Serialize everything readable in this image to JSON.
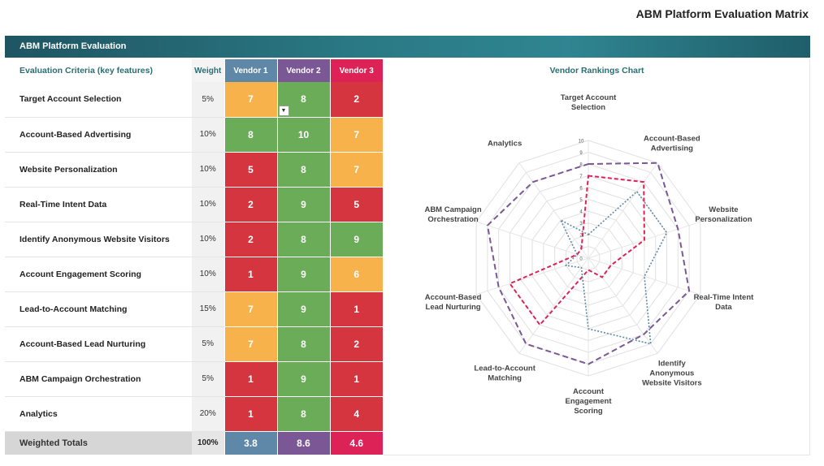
{
  "page_title": "ABM Platform Evaluation Matrix",
  "banner": "ABM Platform Evaluation",
  "table": {
    "criteria_header": "Evaluation Criteria (key features)",
    "weight_header": "Weight",
    "vendors": [
      "Vendor 1",
      "Vendor 2",
      "Vendor 3"
    ],
    "vendor_colors": [
      "#5f87a8",
      "#7b5795",
      "#dc2257"
    ],
    "rows": [
      {
        "criterion": "Target Account Selection",
        "weight": "5%",
        "scores": [
          "7",
          "8",
          "2"
        ],
        "ratings": [
          "o",
          "g",
          "r"
        ]
      },
      {
        "criterion": "Account-Based Advertising",
        "weight": "10%",
        "scores": [
          "8",
          "10",
          "7"
        ],
        "ratings": [
          "g",
          "g",
          "o"
        ]
      },
      {
        "criterion": "Website Personalization",
        "weight": "10%",
        "scores": [
          "5",
          "8",
          "7"
        ],
        "ratings": [
          "r",
          "g",
          "o"
        ]
      },
      {
        "criterion": "Real-Time Intent Data",
        "weight": "10%",
        "scores": [
          "2",
          "9",
          "5"
        ],
        "ratings": [
          "r",
          "g",
          "r"
        ]
      },
      {
        "criterion": "Identify Anonymous Website Visitors",
        "weight": "10%",
        "scores": [
          "2",
          "8",
          "9"
        ],
        "ratings": [
          "r",
          "g",
          "g"
        ]
      },
      {
        "criterion": "Account Engagement Scoring",
        "weight": "10%",
        "scores": [
          "1",
          "9",
          "6"
        ],
        "ratings": [
          "r",
          "g",
          "o"
        ]
      },
      {
        "criterion": "Lead-to-Account Matching",
        "weight": "15%",
        "scores": [
          "7",
          "9",
          "1"
        ],
        "ratings": [
          "o",
          "g",
          "r"
        ]
      },
      {
        "criterion": "Account-Based Lead Nurturing",
        "weight": "5%",
        "scores": [
          "7",
          "8",
          "2"
        ],
        "ratings": [
          "o",
          "g",
          "r"
        ]
      },
      {
        "criterion": "ABM Campaign Orchestration",
        "weight": "5%",
        "scores": [
          "1",
          "9",
          "1"
        ],
        "ratings": [
          "r",
          "g",
          "r"
        ]
      },
      {
        "criterion": "Analytics",
        "weight": "20%",
        "scores": [
          "1",
          "8",
          "4"
        ],
        "ratings": [
          "r",
          "g",
          "r"
        ]
      }
    ],
    "totals": {
      "label": "Weighted Totals",
      "weight": "100%",
      "values": [
        "3.8",
        "8.6",
        "4.6"
      ]
    },
    "dropdown_icon": "dropdown-arrow-icon"
  },
  "chart_data": {
    "type": "radar",
    "title": "Vendor Rankings Chart",
    "axes": [
      [
        "Target Account",
        "Selection"
      ],
      [
        "Account-Based",
        "Advertising"
      ],
      [
        "Website",
        "Personalization"
      ],
      [
        "Real-Time Intent",
        "Data"
      ],
      [
        "Identify",
        "Anonymous",
        "Website Visitors"
      ],
      [
        "Account",
        "Engagement",
        "Scoring"
      ],
      [
        "Lead-to-Account",
        "Matching"
      ],
      [
        "Account-Based",
        "Lead Nurturing"
      ],
      [
        "ABM Campaign",
        "Orchestration"
      ],
      [
        "Analytics"
      ]
    ],
    "range": [
      0,
      10
    ],
    "ticks": [
      "0",
      "1",
      "2",
      "3",
      "4",
      "5",
      "6",
      "7",
      "8",
      "9",
      "10"
    ],
    "series": [
      {
        "values": [
          7,
          8,
          5,
          2,
          2,
          1,
          7,
          7,
          1,
          1
        ],
        "color": "#dc2257",
        "dash": "dashed"
      },
      {
        "values": [
          8,
          10,
          8,
          9,
          8,
          9,
          9,
          8,
          9,
          8
        ],
        "color": "#7b5795",
        "dash": "long-dash"
      },
      {
        "values": [
          2,
          7,
          7,
          5,
          9,
          6,
          1,
          2,
          1,
          4
        ],
        "color": "#5f87a8",
        "dash": "dotted"
      }
    ],
    "grid": true,
    "legend": "none"
  }
}
